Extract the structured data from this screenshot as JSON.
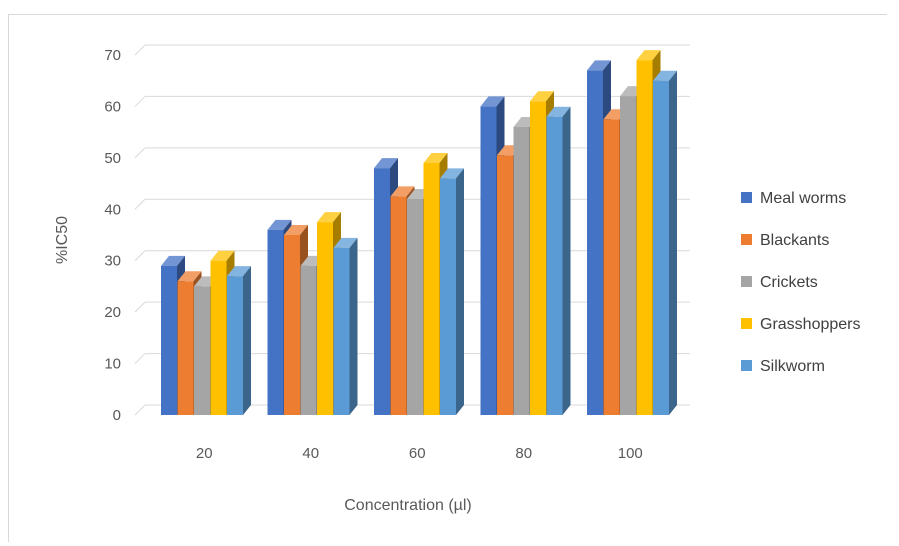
{
  "chart_data": {
    "type": "bar",
    "title": "",
    "xlabel": "Concentration (µl)",
    "ylabel": "%IC50",
    "ylim": [
      0,
      70
    ],
    "y_ticks": [
      0,
      10,
      20,
      30,
      40,
      50,
      60,
      70
    ],
    "grid": true,
    "legend_position": "right",
    "categories": [
      "20",
      "40",
      "60",
      "80",
      "100"
    ],
    "series": [
      {
        "name": "Meal worms",
        "color": "#4472c4",
        "values": [
          29,
          36,
          48,
          60,
          67
        ]
      },
      {
        "name": "Blackants",
        "color": "#ed7d31",
        "values": [
          26,
          35,
          42.5,
          50.5,
          57.5
        ]
      },
      {
        "name": "Crickets",
        "color": "#a5a5a5",
        "values": [
          25,
          29,
          42,
          56,
          62
        ]
      },
      {
        "name": "Grasshoppers",
        "color": "#ffc000",
        "values": [
          30,
          37.5,
          49,
          61,
          69
        ]
      },
      {
        "name": "Silkworm",
        "color": "#5b9bd5",
        "values": [
          27,
          32.5,
          46,
          58,
          65
        ]
      }
    ]
  }
}
